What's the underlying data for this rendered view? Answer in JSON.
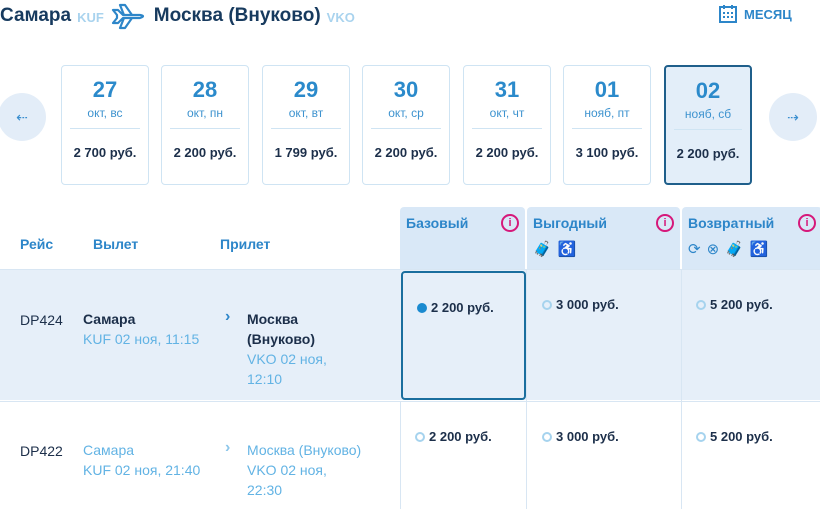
{
  "header": {
    "from_city": "Самара",
    "from_code": "KUF",
    "to_city": "Москва (Внуково)",
    "to_code": "VKO",
    "month_label": "МЕСЯЦ"
  },
  "dates": [
    {
      "day": "27",
      "weekday": "окт, вс",
      "price": "2 700 руб."
    },
    {
      "day": "28",
      "weekday": "окт, пн",
      "price": "2 200 руб."
    },
    {
      "day": "29",
      "weekday": "окт, вт",
      "price": "1 799 руб."
    },
    {
      "day": "30",
      "weekday": "окт, ср",
      "price": "2 200 руб."
    },
    {
      "day": "31",
      "weekday": "окт, чт",
      "price": "2 200 руб."
    },
    {
      "day": "01",
      "weekday": "нояб, пт",
      "price": "3 100 руб."
    },
    {
      "day": "02",
      "weekday": "нояб, сб",
      "price": "2 200 руб.",
      "selected": true
    }
  ],
  "columns": {
    "flight": "Рейс",
    "departure": "Вылет",
    "arrival": "Прилет"
  },
  "fares": [
    {
      "name": "Базовый",
      "info": "i"
    },
    {
      "name": "Выгодный",
      "info": "i"
    },
    {
      "name": "Возвратный",
      "info": "i"
    }
  ],
  "flights": [
    {
      "number": "DP424",
      "from": "Самара",
      "dep": "KUF 02 ноя, 11:15",
      "to_line1": "Москва",
      "to_line2": "(Внуково)",
      "arr1": "VKO 02 ноя,",
      "arr2": "12:10",
      "prices": [
        "2 200 руб.",
        "3 000 руб.",
        "5 200 руб."
      ],
      "selected_fare": 0
    },
    {
      "number": "DP422",
      "from": "Самара",
      "dep": "KUF 02 ноя, 21:40",
      "to_line1": "Москва (Внуково)",
      "arr1": "VKO 02 ноя,",
      "arr2": "22:30",
      "prices": [
        "2 200 руб.",
        "3 000 руб.",
        "5 200 руб."
      ]
    }
  ]
}
